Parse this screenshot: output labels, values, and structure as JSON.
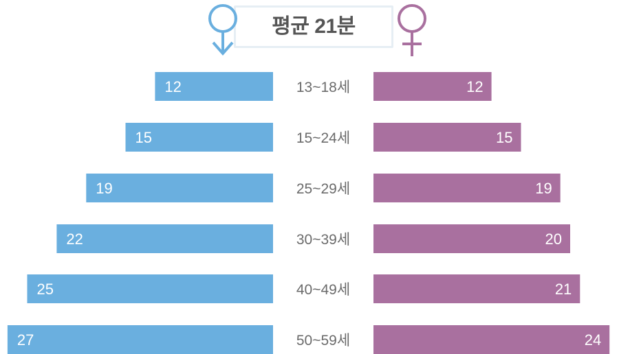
{
  "header": {
    "title": "평균 21분",
    "male_icon": "male-symbol-icon",
    "female_icon": "female-symbol-icon",
    "male_color": "#6aafdf",
    "female_color": "#a9709f"
  },
  "chart_data": {
    "type": "bar",
    "orientation": "horizontal-butterfly",
    "title": "평균 21분",
    "categories": [
      "13~18세",
      "15~24세",
      "25~29세",
      "30~39세",
      "40~49세",
      "50~59세"
    ],
    "series": [
      {
        "values": [
          12,
          15,
          19,
          22,
          25,
          27
        ],
        "color": "#6aafdf",
        "side": "left"
      },
      {
        "values": [
          12,
          15,
          19,
          20,
          21,
          24
        ],
        "color": "#a9709f",
        "side": "right"
      }
    ],
    "xlim": [
      0,
      28
    ],
    "grid": false,
    "legend": "none"
  }
}
